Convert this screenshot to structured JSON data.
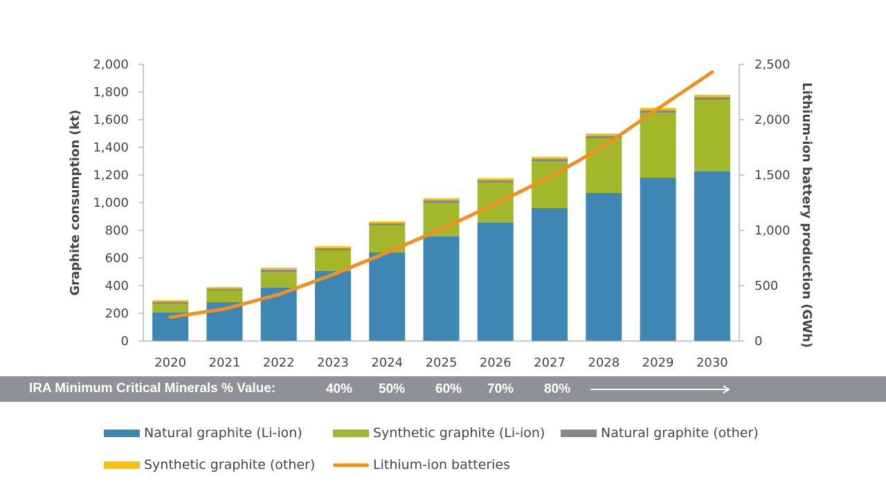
{
  "chart_data": {
    "type": "bar",
    "stacked": true,
    "title": "",
    "categories": [
      "2020",
      "2021",
      "2022",
      "2023",
      "2024",
      "2025",
      "2026",
      "2027",
      "2028",
      "2029",
      "2030"
    ],
    "series": [
      {
        "name": "Natural graphite (Li-ion)",
        "color": "#3e87b4",
        "values": [
          205,
          280,
          385,
          505,
          640,
          755,
          855,
          960,
          1070,
          1180,
          1225
        ]
      },
      {
        "name": "Synthetic graphite (Li-ion)",
        "color": "#a2b72a",
        "values": [
          65,
          85,
          115,
          150,
          195,
          245,
          290,
          340,
          395,
          470,
          520
        ]
      },
      {
        "name": "Natural graphite (other)",
        "color": "#878787",
        "values": [
          13,
          13,
          16,
          16,
          16,
          17,
          17,
          17,
          18,
          18,
          18
        ]
      },
      {
        "name": "Synthetic graphite (other)",
        "color": "#f7c10c",
        "values": [
          12,
          12,
          14,
          14,
          14,
          15,
          15,
          15,
          17,
          17,
          17
        ]
      }
    ],
    "line_series": {
      "name": "Lithium-ion batteries",
      "color": "#f0901e",
      "axis": "right",
      "values": [
        215,
        290,
        420,
        600,
        800,
        1010,
        1240,
        1480,
        1760,
        2100,
        2430
      ]
    },
    "ylabel": "Graphite consumption (kt)",
    "ylim": [
      0,
      2000
    ],
    "yticks": [
      0,
      200,
      400,
      600,
      800,
      1000,
      1200,
      1400,
      1600,
      1800,
      2000
    ],
    "ytick_labels": [
      "0",
      "200",
      "400",
      "600",
      "800",
      "1,000",
      "1,200",
      "1,400",
      "1,600",
      "1,800",
      "2,000"
    ],
    "y2label": "Lithium-ion battery production (GWh)",
    "y2lim": [
      0,
      2500
    ],
    "y2ticks": [
      0,
      500,
      1000,
      1500,
      2000,
      2500
    ],
    "y2tick_labels": [
      "0",
      "500",
      "1,000",
      "1,500",
      "2,000",
      "2,500"
    ],
    "grid": false,
    "legend_position": "bottom"
  },
  "ira_band": {
    "label": "IRA Minimum Critical Minerals % Value:",
    "percentages": [
      "40%",
      "50%",
      "60%",
      "70%",
      "80%"
    ]
  },
  "legend": {
    "items": [
      {
        "label": "Natural graphite (Li-ion)",
        "kind": "bar",
        "color": "#3e87b4"
      },
      {
        "label": "Synthetic graphite (Li-ion)",
        "kind": "bar",
        "color": "#a2b72a"
      },
      {
        "label": "Natural graphite (other)",
        "kind": "bar",
        "color": "#878787"
      },
      {
        "label": "Synthetic graphite (other)",
        "kind": "bar",
        "color": "#f7c10c"
      },
      {
        "label": "Lithium-ion batteries",
        "kind": "line",
        "color": "#f0901e"
      }
    ]
  }
}
